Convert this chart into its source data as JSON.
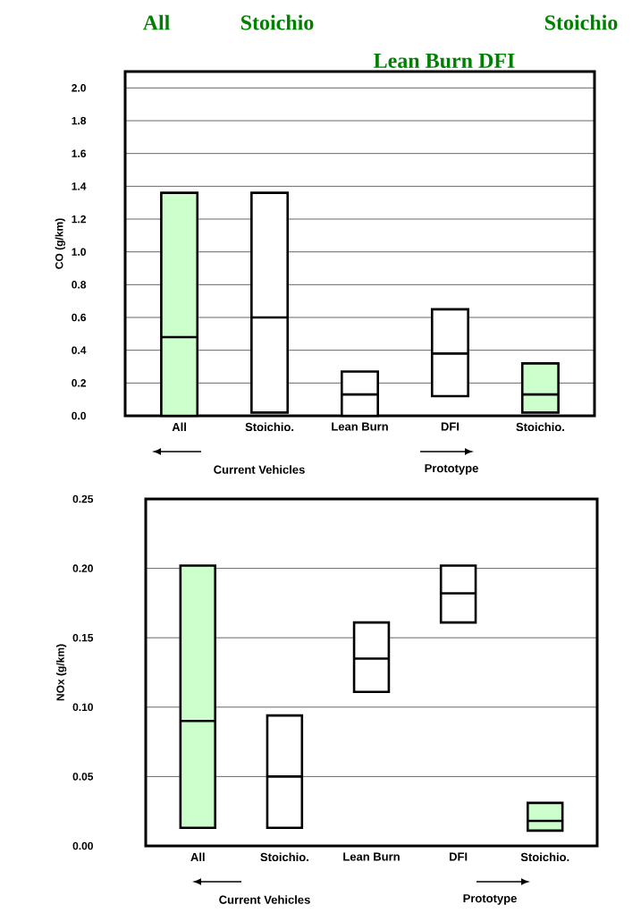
{
  "chart_data": [
    {
      "type": "box",
      "ylabel": "CO (g/km)",
      "categories": [
        "All",
        "Stoichio.",
        "Lean Burn",
        "DFI",
        "Stoichio."
      ],
      "boxes": [
        {
          "low": 0.0,
          "q1": 0.0,
          "median": 0.48,
          "q3": 1.36,
          "high": 1.36
        },
        {
          "low": 0.02,
          "q1": 0.02,
          "median": 0.6,
          "q3": 1.36,
          "high": 1.36
        },
        {
          "low": 0.0,
          "q1": 0.0,
          "median": 0.13,
          "q3": 0.27,
          "high": 0.27
        },
        {
          "low": 0.12,
          "q1": 0.12,
          "median": 0.38,
          "q3": 0.65,
          "high": 0.65
        },
        {
          "low": 0.02,
          "q1": 0.02,
          "median": 0.13,
          "q3": 0.32,
          "high": 0.32
        }
      ],
      "colors": [
        "#ccffcc",
        "#ffffff",
        "#ffffff",
        "#ffffff",
        "#ccffcc"
      ],
      "ylim": [
        0,
        2.1
      ],
      "yticks": [
        {
          "value": 0,
          "label": "0.0"
        },
        0.2,
        0.4,
        0.6,
        0.8,
        {
          "value": 1,
          "label": "1.0"
        },
        1.2,
        1.4,
        1.6,
        1.8,
        {
          "value": 2,
          "label": "2.0"
        }
      ],
      "grid": "y",
      "annotations": [
        "All",
        "Stoichio",
        "Stoichio",
        "Lean Burn DFI",
        "Current Vehicles",
        "Prototype"
      ]
    },
    {
      "type": "box",
      "ylabel": "NOx (g/km)",
      "categories": [
        "All",
        "Stoichio.",
        "Lean Burn",
        "DFI",
        "Stoichio."
      ],
      "boxes": [
        {
          "low": 0.013,
          "q1": 0.013,
          "median": 0.09,
          "q3": 0.202,
          "high": 0.202
        },
        {
          "low": 0.013,
          "q1": 0.013,
          "median": 0.05,
          "q3": 0.094,
          "high": 0.094
        },
        {
          "low": 0.111,
          "q1": 0.111,
          "median": 0.135,
          "q3": 0.161,
          "high": 0.161
        },
        {
          "low": 0.161,
          "q1": 0.161,
          "median": 0.182,
          "q3": 0.202,
          "high": 0.202
        },
        {
          "low": 0.011,
          "q1": 0.011,
          "median": 0.018,
          "q3": 0.031,
          "high": 0.031
        }
      ],
      "colors": [
        "#ccffcc",
        "#ffffff",
        "#ffffff",
        "#ffffff",
        "#ccffcc"
      ],
      "ylim": [
        0,
        0.25
      ],
      "yticks": [
        {
          "value": 0,
          "label": "0.00"
        },
        {
          "value": 0.05,
          "label": "0.05"
        },
        {
          "value": 0.1,
          "label": "0.10"
        },
        {
          "value": 0.15,
          "label": "0.15"
        },
        {
          "value": 0.2,
          "label": "0.20"
        },
        {
          "value": 0.25,
          "label": "0.25"
        }
      ],
      "grid": "y",
      "annotations": [
        "Current Vehicles",
        "Prototype"
      ]
    }
  ]
}
